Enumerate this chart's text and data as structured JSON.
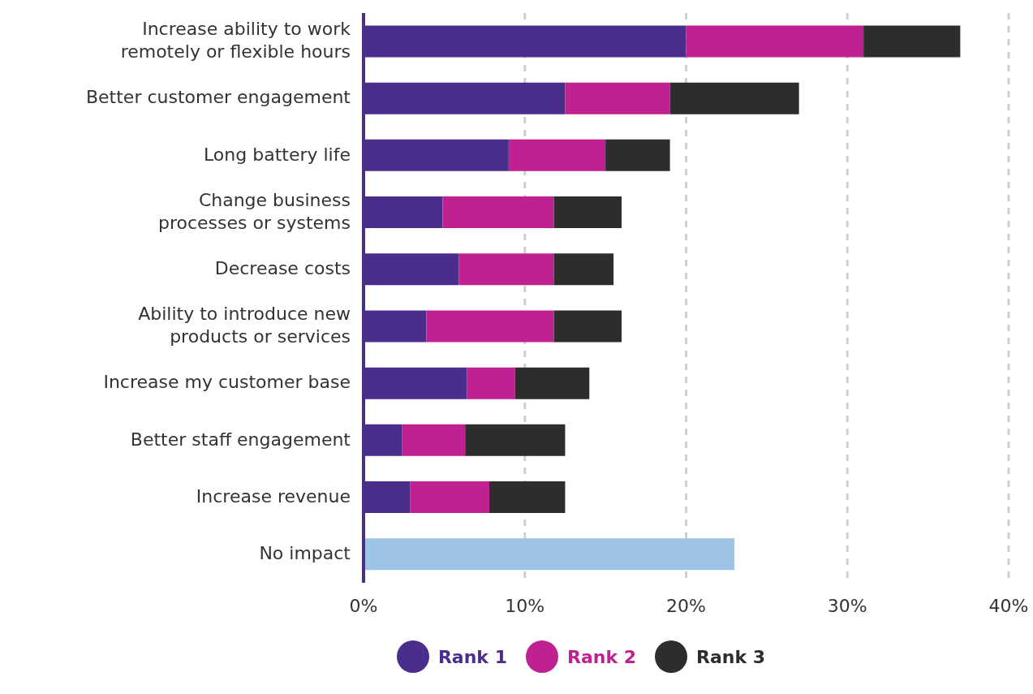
{
  "chart_data": {
    "type": "bar",
    "orientation": "horizontal",
    "stacked": true,
    "categories": [
      "Increase ability to work\nremotely or flexible hours",
      "Better customer engagement",
      "Long battery life",
      "Change business\nprocesses or systems",
      "Decrease costs",
      "Ability to introduce new\nproducts or services",
      "Increase my customer base",
      "Better staff engagement",
      "Increase revenue",
      "No impact"
    ],
    "series": [
      {
        "name": "Rank 1",
        "color": "#4b2e8c",
        "values": [
          20,
          12.5,
          9,
          4.9,
          5.9,
          3.9,
          6.4,
          2.4,
          2.9,
          null
        ]
      },
      {
        "name": "Rank 2",
        "color": "#c02190",
        "values": [
          11,
          6.5,
          6,
          6.9,
          5.9,
          7.9,
          3.0,
          3.9,
          4.9,
          null
        ]
      },
      {
        "name": "Rank 3",
        "color": "#2d2d2d",
        "values": [
          6,
          8,
          4,
          4.2,
          3.7,
          4.2,
          4.6,
          6.2,
          4.7,
          null
        ]
      },
      {
        "color": "#9dc3e6",
        "values": [
          null,
          null,
          null,
          null,
          null,
          null,
          null,
          null,
          null,
          23
        ]
      }
    ],
    "xlim": [
      0,
      40
    ],
    "xticks": [
      {
        "value": 0,
        "label": "0%"
      },
      {
        "value": 10,
        "label": "10%"
      },
      {
        "value": 20,
        "label": "20%"
      },
      {
        "value": 30,
        "label": "30%"
      },
      {
        "value": 40,
        "label": "40%"
      }
    ],
    "grid": "x",
    "legend": "bottom"
  }
}
